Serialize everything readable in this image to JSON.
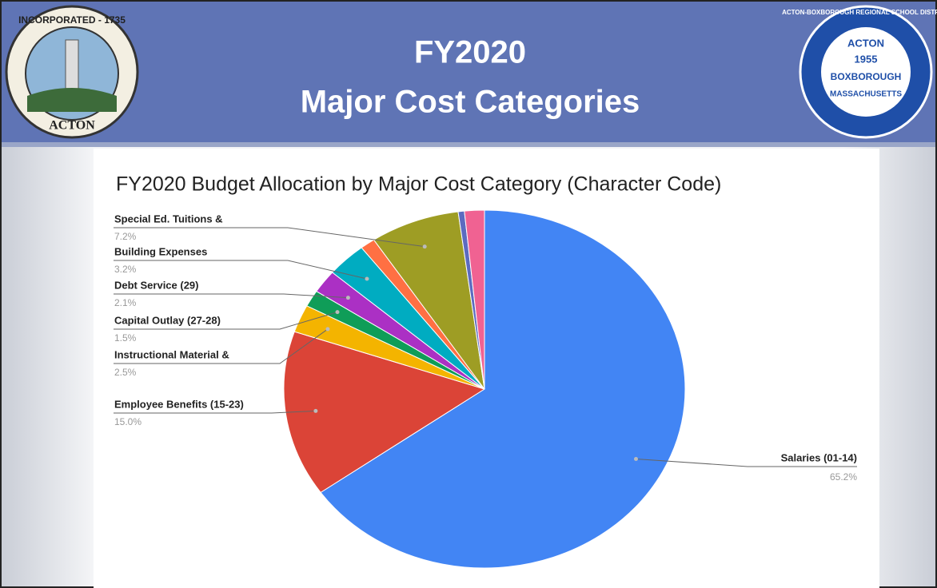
{
  "slide": {
    "title_line1": "FY2020",
    "title_line2": "Major Cost Categories",
    "left_logo": {
      "top": "INCORPORATED - 1735",
      "bottom": "ACTON"
    },
    "right_logo": {
      "ring": "ACTON-BOXBOROUGH REGIONAL SCHOOL DISTRICT",
      "line1": "ACTON",
      "line2": "1955",
      "line3": "BOXBOROUGH",
      "line4": "MASSACHUSETTS"
    }
  },
  "chart_data": {
    "type": "pie",
    "title": "FY2020 Budget Allocation by Major Cost Category (Character Code)",
    "categories": [
      "Salaries (01-14)",
      "Employee Benefits (15-23)",
      "Instructional Material &",
      "Capital Outlay (27-28)",
      "Debt Service (29)",
      "Building Expenses",
      null,
      "Special Ed. Tuitions &",
      null,
      null
    ],
    "values": [
      65.2,
      15.0,
      2.5,
      1.5,
      2.1,
      3.2,
      1.2,
      7.2,
      0.5,
      1.6
    ],
    "value_labels": [
      "65.2%",
      "15.0%",
      "2.5%",
      "1.5%",
      "2.1%",
      "3.2%",
      null,
      "7.2%",
      null,
      null
    ],
    "colors": [
      "#4285f4",
      "#db4437",
      "#f4b400",
      "#0f9d58",
      "#ab30c4",
      "#00acc1",
      "#ff7043",
      "#9e9d24",
      "#5c6bc0",
      "#f06292"
    ]
  }
}
